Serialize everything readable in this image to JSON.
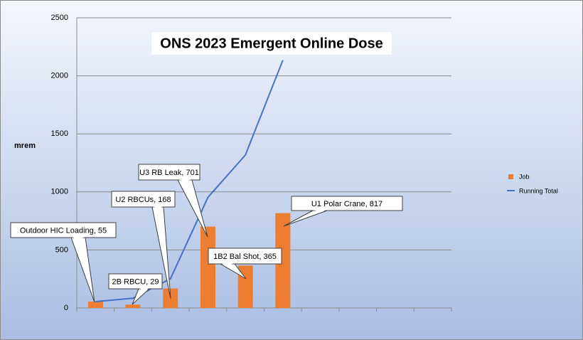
{
  "chart_data": {
    "type": "bar",
    "title": "ONS 2023 Emergent Online Dose",
    "y_label": "mrem",
    "categories": [
      null,
      null,
      null,
      null,
      null,
      null,
      null,
      null,
      null,
      null
    ],
    "series": [
      {
        "name": "Job",
        "type": "bar",
        "color": "#ed7d31",
        "values": [
          55,
          29,
          168,
          701,
          365,
          817,
          null,
          null,
          null,
          null
        ],
        "value_labels": [
          "Outdoor HIC Loading, 55",
          "2B RBCU, 29",
          "U2 RBCUs, 168",
          "U3 RB Leak, 701",
          "1B2 Bal Shot, 365",
          "U1 Polar Crane, 817",
          null,
          null,
          null,
          null
        ]
      },
      {
        "name": "Running Total",
        "type": "line",
        "color": "#4472c4",
        "values": [
          55,
          84,
          252,
          953,
          1318,
          2135,
          null,
          null,
          null,
          null
        ]
      }
    ],
    "ylim": [
      0,
      2500
    ],
    "yticks": [
      0,
      500,
      1000,
      1500,
      2000,
      2500
    ],
    "grid": true,
    "legend": "right"
  }
}
